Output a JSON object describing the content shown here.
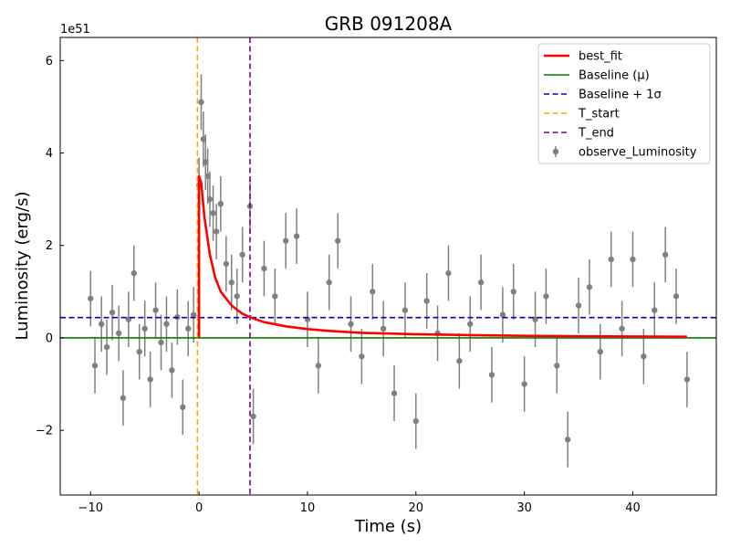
{
  "chart_data": {
    "type": "scatter",
    "title": "GRB 091208A",
    "xlabel": "Time (s)",
    "ylabel": "Luminosity (erg/s)",
    "y_scale_label": "1e51",
    "xlim": [
      -12.8,
      47.7
    ],
    "ylim": [
      -3.4,
      6.5
    ],
    "x_ticks": [
      -10,
      0,
      10,
      20,
      30,
      40
    ],
    "x_tick_labels": [
      "−10",
      "0",
      "10",
      "20",
      "30",
      "40"
    ],
    "y_ticks": [
      -2,
      0,
      2,
      4,
      6
    ],
    "y_tick_labels": [
      "−2",
      "0",
      "2",
      "4",
      "6"
    ],
    "grid": false,
    "legend_position": "top-right",
    "series": [
      {
        "name": "best_fit",
        "kind": "line",
        "color": "#ff0000",
        "x": [
          0.0,
          0.2,
          0.5,
          1.0,
          1.5,
          2.0,
          3.0,
          4.0,
          5.0,
          6.0,
          8.0,
          10.0,
          12.0,
          15.0,
          20.0,
          25.0,
          30.0,
          35.0,
          40.0,
          45.0
        ],
        "y": [
          3.5,
          3.35,
          2.6,
          1.8,
          1.3,
          1.0,
          0.7,
          0.52,
          0.42,
          0.34,
          0.25,
          0.19,
          0.15,
          0.11,
          0.08,
          0.06,
          0.045,
          0.035,
          0.03,
          0.025
        ]
      },
      {
        "name": "Baseline (μ)",
        "kind": "hline",
        "color": "#008000",
        "y": 0.0
      },
      {
        "name": "Baseline + 1σ",
        "kind": "hline-dashed",
        "color": "#0000cc",
        "y": 0.44
      },
      {
        "name": "T_start",
        "kind": "vline-dashed",
        "color": "#ffa500",
        "x": -0.15
      },
      {
        "name": "T_end",
        "kind": "vline-dashed",
        "color": "#800080",
        "x": 4.7
      },
      {
        "name": "observe_Luminosity",
        "kind": "errorbar",
        "color": "#808080",
        "description": "noisy time series, error bars ~±0.6",
        "x": [
          -10.0,
          -9.6,
          -9.0,
          -8.5,
          -8.0,
          -7.4,
          -7.0,
          -6.5,
          -6.0,
          -5.5,
          -5.0,
          -4.5,
          -4.0,
          -3.5,
          -3.0,
          -2.5,
          -2.0,
          -1.5,
          -1.0,
          -0.5,
          0.0,
          0.2,
          0.4,
          0.6,
          0.8,
          1.0,
          1.3,
          1.6,
          2.0,
          2.5,
          3.0,
          3.5,
          4.0,
          4.7,
          5.0,
          6.0,
          7.0,
          8.0,
          9.0,
          10.0,
          11.0,
          12.0,
          12.8,
          14.0,
          15.0,
          16.0,
          17.0,
          18.0,
          19.0,
          20.0,
          21.0,
          22.0,
          23.0,
          24.0,
          25.0,
          26.0,
          27.0,
          28.0,
          29.0,
          30.0,
          31.0,
          32.0,
          33.0,
          34.0,
          35.0,
          36.0,
          37.0,
          38.0,
          39.0,
          40.0,
          41.0,
          42.0,
          43.0,
          44.0,
          45.0
        ],
        "y": [
          0.85,
          -0.6,
          0.3,
          -0.2,
          0.55,
          0.1,
          -1.3,
          0.4,
          1.4,
          -0.3,
          0.2,
          -0.9,
          0.6,
          -0.1,
          0.3,
          -0.7,
          0.45,
          -1.5,
          0.2,
          0.5,
          3.3,
          5.1,
          4.3,
          3.8,
          3.5,
          3.0,
          2.7,
          2.3,
          2.9,
          1.6,
          1.2,
          0.9,
          1.8,
          2.85,
          -1.7,
          1.5,
          0.9,
          2.1,
          2.2,
          0.4,
          -0.6,
          1.2,
          2.1,
          0.3,
          -0.4,
          1.0,
          0.2,
          -1.2,
          0.6,
          -1.8,
          0.8,
          0.1,
          1.4,
          -0.5,
          0.3,
          1.2,
          -0.8,
          0.5,
          1.0,
          -1.0,
          0.4,
          0.9,
          -0.6,
          -2.2,
          0.7,
          1.1,
          -0.3,
          1.7,
          0.2,
          1.7,
          -0.4,
          0.6,
          1.8,
          0.9,
          -0.9
        ],
        "error": 0.6
      }
    ]
  }
}
